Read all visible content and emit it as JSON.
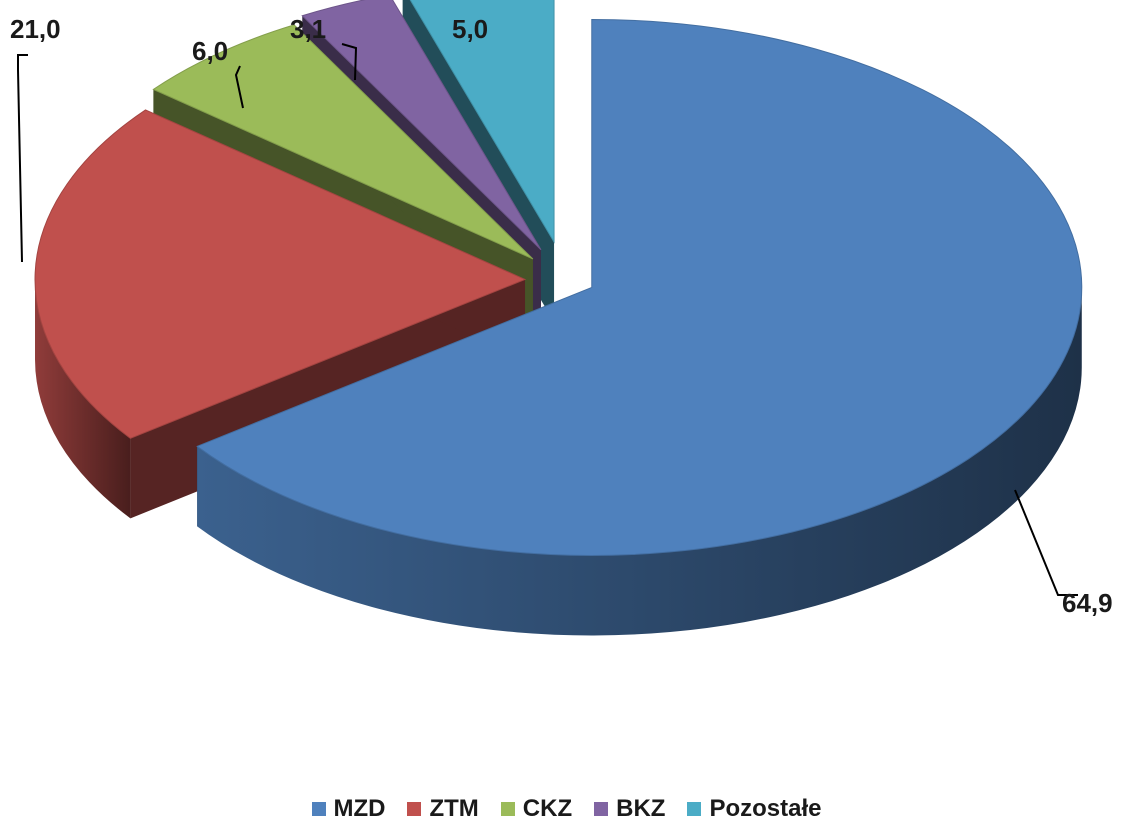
{
  "chart_data": {
    "type": "pie",
    "title": "",
    "decimal_separator": ",",
    "slices": [
      {
        "name": "MZD",
        "value": 64.9,
        "label": "64,9",
        "color": "#4F81BD"
      },
      {
        "name": "ZTM",
        "value": 21.0,
        "label": "21,0",
        "color": "#C0504D"
      },
      {
        "name": "CKZ",
        "value": 6.0,
        "label": "6,0",
        "color": "#9BBB59"
      },
      {
        "name": "BKZ",
        "value": 3.1,
        "label": "3,1",
        "color": "#8064A2"
      },
      {
        "name": "Pozostałe",
        "value": 5.0,
        "label": "5,0",
        "color": "#4BACC6"
      }
    ],
    "style": "3d-exploded",
    "legend_position": "bottom"
  }
}
